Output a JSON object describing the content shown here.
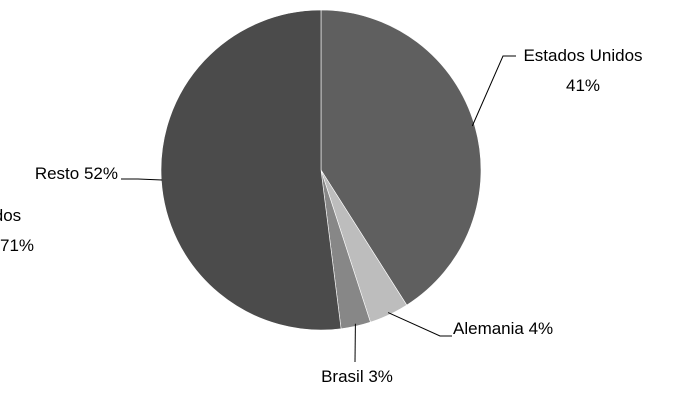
{
  "chart_data": {
    "type": "pie",
    "title": "",
    "start_angle": "12 o'clock",
    "direction": "clockwise",
    "slices": [
      {
        "label": "Estados Unidos",
        "value": 41,
        "value_label": "41%",
        "color": "#5f5f5f"
      },
      {
        "label": "Alemania",
        "value": 4,
        "value_label": "4%",
        "color": "#bdbdbd"
      },
      {
        "label": "Brasil",
        "value": 3,
        "value_label": "3%",
        "color": "#878787"
      },
      {
        "label": "Resto",
        "value": 52,
        "value_label": "52%",
        "color": "#4b4b4b"
      }
    ],
    "labels_display": [
      {
        "line1": "Estados Unidos",
        "line2": "41%"
      },
      {
        "line1": "Alemania 4%"
      },
      {
        "line1": "Brasil 3%"
      },
      {
        "line1": "Resto 52%"
      }
    ],
    "clipped_left_text": {
      "line1": "idos",
      "line2": "71%"
    },
    "leader_color": "#000000"
  }
}
